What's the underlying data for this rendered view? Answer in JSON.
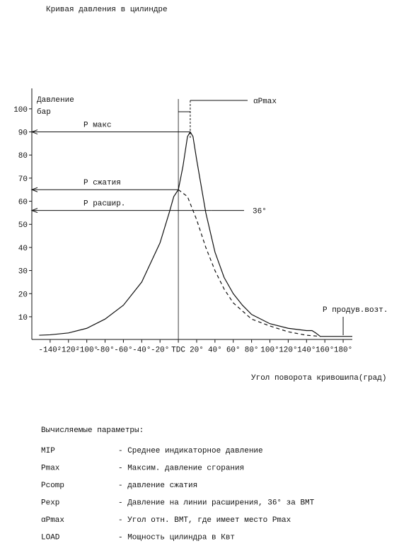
{
  "chart_data": {
    "type": "line",
    "title": "Кривая давления в цилиндре",
    "y_label_lines": [
      "Давление",
      "бар"
    ],
    "x_label": "Угол поворота кривошипа(град)",
    "xlim": [
      -160,
      190
    ],
    "ylim": [
      0,
      107
    ],
    "xticks": [
      {
        "value": -140,
        "label": "-140°"
      },
      {
        "value": -120,
        "label": "-120°"
      },
      {
        "value": -100,
        "label": "-100°"
      },
      {
        "value": -80,
        "label": "-80°"
      },
      {
        "value": -60,
        "label": "-60°"
      },
      {
        "value": -40,
        "label": "-40°"
      },
      {
        "value": -20,
        "label": "-20°"
      },
      {
        "value": 0,
        "label": "TDC"
      },
      {
        "value": 20,
        "label": "20°"
      },
      {
        "value": 40,
        "label": "40°"
      },
      {
        "value": 60,
        "label": "60°"
      },
      {
        "value": 80,
        "label": "80°"
      },
      {
        "value": 100,
        "label": "100°"
      },
      {
        "value": 120,
        "label": "120°"
      },
      {
        "value": 140,
        "label": "140°"
      },
      {
        "value": 160,
        "label": "160°"
      },
      {
        "value": 180,
        "label": "180°"
      }
    ],
    "yticks": [
      10,
      20,
      30,
      40,
      50,
      60,
      70,
      80,
      90,
      100
    ],
    "series": [
      {
        "color": "#111",
        "dash": false,
        "x": [
          -152,
          -140,
          -120,
          -100,
          -80,
          -60,
          -40,
          -20,
          -10,
          -5,
          0,
          5,
          10,
          13,
          16,
          20,
          30,
          40,
          50,
          60,
          70,
          80,
          100,
          120,
          140,
          146,
          150,
          155,
          160,
          180,
          190
        ],
        "values": [
          2,
          2.2,
          3,
          5,
          9,
          15,
          25,
          42,
          55,
          62,
          65,
          75,
          88,
          90,
          88,
          78,
          55,
          38,
          27,
          20,
          15,
          11,
          7,
          5,
          4,
          4,
          3,
          1.5,
          1.5,
          1.5,
          1.5
        ]
      },
      {
        "color": "#111",
        "dash": true,
        "x": [
          0,
          10,
          20,
          30,
          40,
          50,
          60,
          80,
          100,
          120,
          140,
          155
        ],
        "values": [
          65,
          62,
          52,
          40,
          30,
          22,
          16,
          9,
          6,
          3.5,
          2,
          1.5
        ]
      }
    ],
    "annotations": [
      {
        "text": "P макс",
        "y": 90
      },
      {
        "text": "P сжатия",
        "y": 65
      },
      {
        "text": "P расшир.",
        "y": 56
      },
      {
        "text": "36°",
        "x": 36
      },
      {
        "text": "αPmax",
        "x": 13
      },
      {
        "text": "P продув.возт.",
        "x": 180
      }
    ]
  },
  "parameters": {
    "heading": "Вычисляемые параметры:",
    "rows": [
      [
        "MIP",
        "- Среднее индикаторное давление"
      ],
      [
        "Pmax",
        "- Максим. давление сгорания"
      ],
      [
        "Pcomp",
        "- давление сжатия"
      ],
      [
        "Pexp",
        "- Давление на линии расширения, 36° за ВМТ"
      ],
      [
        "αPmax",
        "- Угол отн. ВМТ, где имеет место Pmax"
      ],
      [
        "LOAD",
        "- Мощность цилиндра в Квт"
      ]
    ]
  }
}
